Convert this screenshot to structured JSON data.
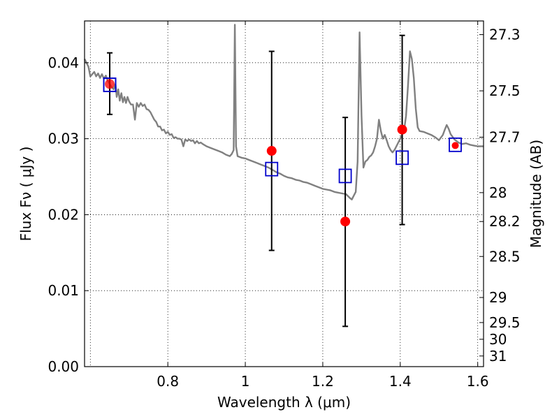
{
  "chart_data": {
    "type": "scatter",
    "xlabel": "Wavelength  λ (μm)",
    "ylabel_left": "Flux  Fν  ( μJy )",
    "ylabel_right": "Magnitude (AB)",
    "xlim": [
      0.585,
      1.615
    ],
    "ylim": [
      0.0,
      0.0455
    ],
    "grid": true,
    "x_ticks": [
      0.8,
      1.0,
      1.2,
      1.4,
      1.6
    ],
    "x_tick_labels": [
      "0.8",
      "1",
      "1.2",
      "1.4",
      "1.6"
    ],
    "y_ticks": [
      0.0,
      0.01,
      0.02,
      0.03,
      0.04
    ],
    "y_tick_labels": [
      "0.00",
      "0.01",
      "0.02",
      "0.03",
      "0.04"
    ],
    "right_ticks": [
      {
        "flux": 0.0437,
        "label": "27.3"
      },
      {
        "flux": 0.0363,
        "label": "27.5"
      },
      {
        "flux": 0.0302,
        "label": "27.7"
      },
      {
        "flux": 0.0229,
        "label": "28"
      },
      {
        "flux": 0.0191,
        "label": "28.2"
      },
      {
        "flux": 0.0145,
        "label": "28.5"
      },
      {
        "flux": 0.0091,
        "label": "29"
      },
      {
        "flux": 0.0058,
        "label": "29.5"
      },
      {
        "flux": 0.0036,
        "label": "30"
      },
      {
        "flux": 0.0014,
        "label": "31"
      }
    ],
    "series": [
      {
        "kind": "model_sed",
        "color": "#808080",
        "points": [
          [
            0.585,
            0.0405
          ],
          [
            0.595,
            0.0395
          ],
          [
            0.6,
            0.0382
          ],
          [
            0.605,
            0.0385
          ],
          [
            0.61,
            0.0388
          ],
          [
            0.615,
            0.0382
          ],
          [
            0.62,
            0.0386
          ],
          [
            0.625,
            0.038
          ],
          [
            0.63,
            0.0385
          ],
          [
            0.635,
            0.0379
          ],
          [
            0.64,
            0.0383
          ],
          [
            0.645,
            0.0376
          ],
          [
            0.65,
            0.0372
          ],
          [
            0.655,
            0.0368
          ],
          [
            0.66,
            0.0365
          ],
          [
            0.665,
            0.0372
          ],
          [
            0.668,
            0.0355
          ],
          [
            0.672,
            0.0365
          ],
          [
            0.676,
            0.035
          ],
          [
            0.68,
            0.036
          ],
          [
            0.684,
            0.0348
          ],
          [
            0.688,
            0.0355
          ],
          [
            0.692,
            0.0347
          ],
          [
            0.696,
            0.0355
          ],
          [
            0.7,
            0.0349
          ],
          [
            0.705,
            0.0345
          ],
          [
            0.71,
            0.0345
          ],
          [
            0.715,
            0.0325
          ],
          [
            0.72,
            0.0347
          ],
          [
            0.725,
            0.0342
          ],
          [
            0.73,
            0.0347
          ],
          [
            0.735,
            0.0343
          ],
          [
            0.74,
            0.0345
          ],
          [
            0.745,
            0.0339
          ],
          [
            0.75,
            0.0338
          ],
          [
            0.755,
            0.0335
          ],
          [
            0.76,
            0.033
          ],
          [
            0.765,
            0.0325
          ],
          [
            0.77,
            0.0322
          ],
          [
            0.775,
            0.0316
          ],
          [
            0.78,
            0.0316
          ],
          [
            0.785,
            0.0311
          ],
          [
            0.79,
            0.0312
          ],
          [
            0.795,
            0.0307
          ],
          [
            0.8,
            0.0309
          ],
          [
            0.805,
            0.0305
          ],
          [
            0.81,
            0.0306
          ],
          [
            0.815,
            0.0301
          ],
          [
            0.82,
            0.0302
          ],
          [
            0.825,
            0.03
          ],
          [
            0.83,
            0.03
          ],
          [
            0.835,
            0.0299
          ],
          [
            0.84,
            0.029
          ],
          [
            0.845,
            0.0299
          ],
          [
            0.85,
            0.0297
          ],
          [
            0.855,
            0.0299
          ],
          [
            0.86,
            0.0297
          ],
          [
            0.865,
            0.0298
          ],
          [
            0.87,
            0.0294
          ],
          [
            0.875,
            0.0297
          ],
          [
            0.88,
            0.0294
          ],
          [
            0.885,
            0.0295
          ],
          [
            0.89,
            0.0293
          ],
          [
            0.9,
            0.029
          ],
          [
            0.91,
            0.0288
          ],
          [
            0.92,
            0.0286
          ],
          [
            0.93,
            0.0284
          ],
          [
            0.94,
            0.0282
          ],
          [
            0.95,
            0.0279
          ],
          [
            0.96,
            0.0277
          ],
          [
            0.965,
            0.028
          ],
          [
            0.97,
            0.0285
          ],
          [
            0.973,
            0.045
          ],
          [
            0.976,
            0.029
          ],
          [
            0.98,
            0.0277
          ],
          [
            0.99,
            0.0275
          ],
          [
            1.0,
            0.0274
          ],
          [
            1.01,
            0.0272
          ],
          [
            1.02,
            0.027
          ],
          [
            1.03,
            0.0268
          ],
          [
            1.04,
            0.0266
          ],
          [
            1.05,
            0.0264
          ],
          [
            1.06,
            0.0262
          ],
          [
            1.07,
            0.0259
          ],
          [
            1.08,
            0.0256
          ],
          [
            1.09,
            0.0254
          ],
          [
            1.1,
            0.0251
          ],
          [
            1.11,
            0.0249
          ],
          [
            1.12,
            0.0248
          ],
          [
            1.13,
            0.0246
          ],
          [
            1.14,
            0.0245
          ],
          [
            1.15,
            0.0243
          ],
          [
            1.16,
            0.0242
          ],
          [
            1.17,
            0.024
          ],
          [
            1.18,
            0.0238
          ],
          [
            1.19,
            0.0236
          ],
          [
            1.2,
            0.0234
          ],
          [
            1.21,
            0.0233
          ],
          [
            1.22,
            0.0232
          ],
          [
            1.23,
            0.023
          ],
          [
            1.24,
            0.0229
          ],
          [
            1.25,
            0.0228
          ],
          [
            1.26,
            0.0227
          ],
          [
            1.27,
            0.0222
          ],
          [
            1.275,
            0.022
          ],
          [
            1.28,
            0.0225
          ],
          [
            1.285,
            0.023
          ],
          [
            1.29,
            0.027
          ],
          [
            1.295,
            0.044
          ],
          [
            1.3,
            0.033
          ],
          [
            1.305,
            0.0262
          ],
          [
            1.31,
            0.027
          ],
          [
            1.315,
            0.0272
          ],
          [
            1.32,
            0.0276
          ],
          [
            1.325,
            0.0278
          ],
          [
            1.33,
            0.0282
          ],
          [
            1.335,
            0.029
          ],
          [
            1.34,
            0.03
          ],
          [
            1.345,
            0.0325
          ],
          [
            1.35,
            0.031
          ],
          [
            1.355,
            0.03
          ],
          [
            1.36,
            0.0305
          ],
          [
            1.365,
            0.0298
          ],
          [
            1.37,
            0.029
          ],
          [
            1.375,
            0.0285
          ],
          [
            1.38,
            0.0282
          ],
          [
            1.385,
            0.0285
          ],
          [
            1.39,
            0.029
          ],
          [
            1.4,
            0.03
          ],
          [
            1.41,
            0.0312
          ],
          [
            1.415,
            0.033
          ],
          [
            1.42,
            0.037
          ],
          [
            1.425,
            0.0415
          ],
          [
            1.43,
            0.0405
          ],
          [
            1.435,
            0.038
          ],
          [
            1.44,
            0.034
          ],
          [
            1.445,
            0.0315
          ],
          [
            1.45,
            0.031
          ],
          [
            1.46,
            0.0309
          ],
          [
            1.47,
            0.0307
          ],
          [
            1.48,
            0.0305
          ],
          [
            1.49,
            0.0302
          ],
          [
            1.495,
            0.03
          ],
          [
            1.5,
            0.0298
          ],
          [
            1.51,
            0.0305
          ],
          [
            1.515,
            0.0312
          ],
          [
            1.52,
            0.0318
          ],
          [
            1.525,
            0.0313
          ],
          [
            1.53,
            0.0306
          ],
          [
            1.54,
            0.0299
          ],
          [
            1.55,
            0.0295
          ],
          [
            1.56,
            0.0293
          ],
          [
            1.57,
            0.0294
          ],
          [
            1.58,
            0.0292
          ],
          [
            1.59,
            0.0291
          ],
          [
            1.6,
            0.029
          ],
          [
            1.61,
            0.029
          ],
          [
            1.615,
            0.029
          ]
        ]
      },
      {
        "kind": "observed",
        "marker": "filled-circle",
        "color": "#ff0000",
        "points": [
          {
            "x": 0.65,
            "y": 0.0372,
            "yerr_low": 0.0332,
            "yerr_high": 0.0413
          },
          {
            "x": 1.068,
            "y": 0.0284,
            "yerr_low": 0.0153,
            "yerr_high": 0.0415
          },
          {
            "x": 1.258,
            "y": 0.0191,
            "yerr_low": 0.0053,
            "yerr_high": 0.0328
          },
          {
            "x": 1.405,
            "y": 0.0312,
            "yerr_low": 0.0187,
            "yerr_high": 0.0436
          },
          {
            "x": 1.542,
            "y": 0.0291
          }
        ]
      },
      {
        "kind": "model_synthetic",
        "marker": "open-square",
        "color": "#0000cc",
        "points": [
          {
            "x": 0.65,
            "y": 0.0371
          },
          {
            "x": 1.068,
            "y": 0.026
          },
          {
            "x": 1.258,
            "y": 0.0251
          },
          {
            "x": 1.405,
            "y": 0.0275
          },
          {
            "x": 1.542,
            "y": 0.0292
          }
        ]
      }
    ]
  }
}
